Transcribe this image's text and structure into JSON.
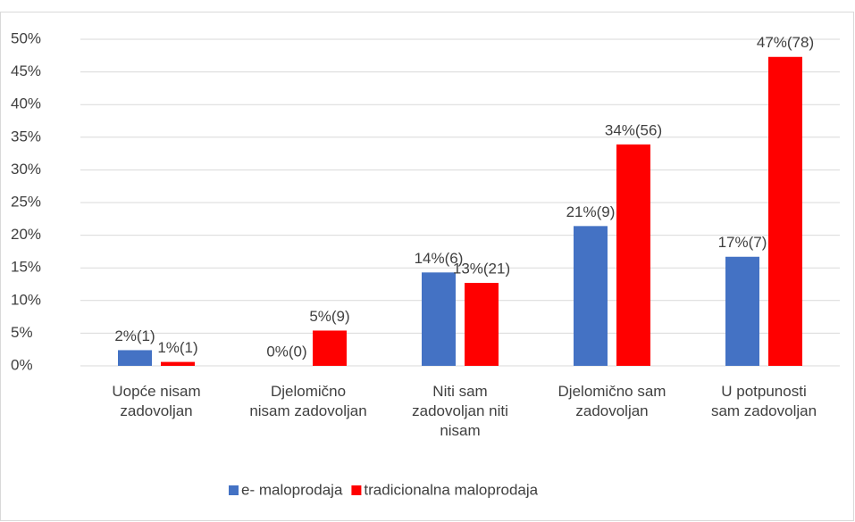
{
  "chart_data": {
    "type": "bar",
    "categories": [
      "Uopće nisam\nzadovoljan",
      "Djelomično\nnisam zadovoljan",
      "Niti sam\nzadovoljan niti\nnisam",
      "Djelomično sam\nzadovoljan",
      "U potpunosti\nsam zadovoljan"
    ],
    "series": [
      {
        "name": "e- maloprodaja",
        "color": "#4472c4",
        "values": [
          2.4,
          0,
          14.3,
          21.4,
          16.7
        ],
        "value_labels": [
          "2%(1)",
          "0%(0)",
          "14%(6)",
          "21%(9)",
          "17%(7)"
        ]
      },
      {
        "name": "tradicionalna maloprodaja",
        "color": "#ff0000",
        "values": [
          0.6,
          5.4,
          12.7,
          33.9,
          47.3
        ],
        "value_labels": [
          "1%(1)",
          "5%(9)",
          "13%(21)",
          "34%(56)",
          "47%(78)"
        ]
      }
    ],
    "ylim": [
      0,
      50
    ],
    "yticks": [
      {
        "value": 0,
        "label": "0%"
      },
      {
        "value": 5,
        "label": "5%"
      },
      {
        "value": 10,
        "label": "10%"
      },
      {
        "value": 15,
        "label": "15%"
      },
      {
        "value": 20,
        "label": "20%"
      },
      {
        "value": 25,
        "label": "25%"
      },
      {
        "value": 30,
        "label": "30%"
      },
      {
        "value": 35,
        "label": "35%"
      },
      {
        "value": 40,
        "label": "40%"
      },
      {
        "value": 45,
        "label": "45%"
      },
      {
        "value": 50,
        "label": "50%"
      }
    ],
    "grid": true,
    "legend": "bottom"
  }
}
